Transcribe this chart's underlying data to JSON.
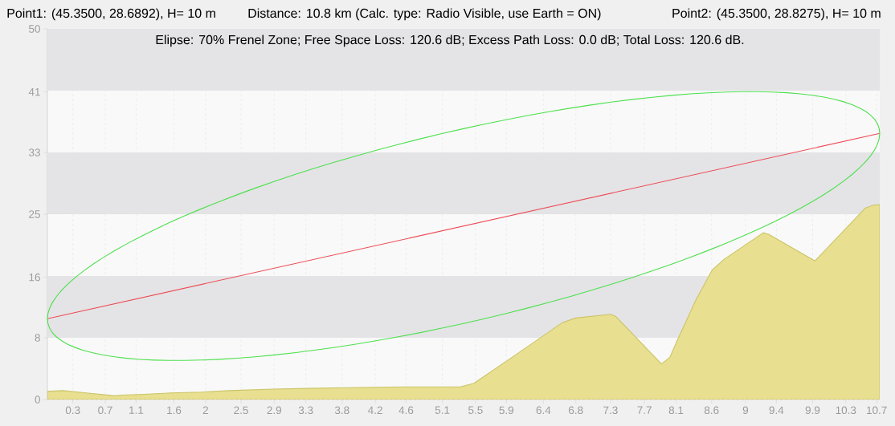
{
  "chart_data": {
    "type": "line",
    "title": "Distance: 10.8 km (Calc. type: Radio Visible, use Earth = ON)",
    "subtitle": "Elipse: 70% Frenel Zone; Free Space Loss: 120.6 dB; Excess Path Loss: 0.0 dB; Total Loss: 120.6 dB.",
    "annotations": [
      "Point1: (45.3500, 28.6892), H= 10 m",
      "Point2: (45.3500, 28.8275), H= 10 m"
    ],
    "series": [
      {
        "type": "area",
        "color": "#e8df90",
        "x": [
          0,
          0.2,
          0.5,
          0.88,
          0.95,
          1.25,
          1.61,
          1.99,
          2.36,
          2.92,
          3.37,
          3.85,
          4.59,
          5.35,
          5.53,
          6.08,
          6.68,
          6.85,
          7.3,
          7.37,
          7.96,
          8.07,
          8.17,
          8.41,
          8.62,
          8.77,
          9.28,
          9.35,
          9.95,
          10.6,
          10.7,
          10.79
        ],
        "values": [
          1.1,
          1.2,
          0.9,
          0.5,
          0.6,
          0.7,
          0.9,
          1.0,
          1.2,
          1.4,
          1.5,
          1.6,
          1.7,
          1.7,
          2.2,
          6.1,
          10.4,
          11.0,
          11.5,
          11.2,
          4.8,
          5.7,
          8.1,
          13.5,
          17.5,
          18.9,
          22.5,
          22.3,
          18.7,
          25.8,
          26.2,
          26.3
        ]
      },
      {
        "color": "#ee4b55",
        "x": [
          0,
          10.79
        ],
        "values": [
          10.9,
          35.9
        ]
      }
    ],
    "xlim": [
      0,
      10.79
    ],
    "xticks": [
      {
        "value": 0.33,
        "label": "0.3"
      },
      {
        "value": 0.75,
        "label": "0.7"
      },
      {
        "value": 1.15,
        "label": "1.1"
      },
      {
        "value": 1.64,
        "label": "1.6"
      },
      {
        "value": 2.05,
        "label": "2"
      },
      {
        "value": 2.51,
        "label": "2.5"
      },
      {
        "value": 2.94,
        "label": "2.9"
      },
      {
        "value": 3.35,
        "label": "3.3"
      },
      {
        "value": 3.82,
        "label": "3.8"
      },
      {
        "value": 4.25,
        "label": "4.2"
      },
      {
        "value": 4.65,
        "label": "4.6"
      },
      {
        "value": 5.12,
        "label": "5.1"
      },
      {
        "value": 5.55,
        "label": "5.5"
      },
      {
        "value": 5.95,
        "label": "5.9"
      },
      {
        "value": 6.43,
        "label": "6.4"
      },
      {
        "value": 6.85,
        "label": "6.8"
      },
      7.3,
      {
        "value": 7.74,
        "label": "7.7"
      },
      {
        "value": 8.15,
        "label": "8.1"
      },
      {
        "value": 8.61,
        "label": "8.6"
      },
      {
        "value": 9.05,
        "label": "9"
      },
      {
        "value": 9.45,
        "label": "9.4"
      },
      {
        "value": 9.92,
        "label": "9.9"
      },
      {
        "value": 10.35,
        "label": "10.3"
      },
      {
        "value": 10.75,
        "label": "10.7"
      }
    ],
    "ylim": [
      0,
      50
    ],
    "yticks": [
      0,
      {
        "value": 8.33,
        "label": "8"
      },
      {
        "value": 16.5,
        "label": "16"
      },
      25,
      {
        "value": 33.33,
        "label": "33"
      },
      {
        "value": 41.5,
        "label": "41"
      },
      50
    ],
    "grid": "x",
    "bands": [
      {
        "axis": "y",
        "from": 8.33,
        "to": 16.67,
        "color": "#e4e4e6"
      },
      {
        "axis": "y",
        "from": 25,
        "to": 33.33,
        "color": "#e4e4e6"
      },
      {
        "axis": "y",
        "from": 41.67,
        "to": 50,
        "color": "#e4e4e6"
      }
    ]
  }
}
